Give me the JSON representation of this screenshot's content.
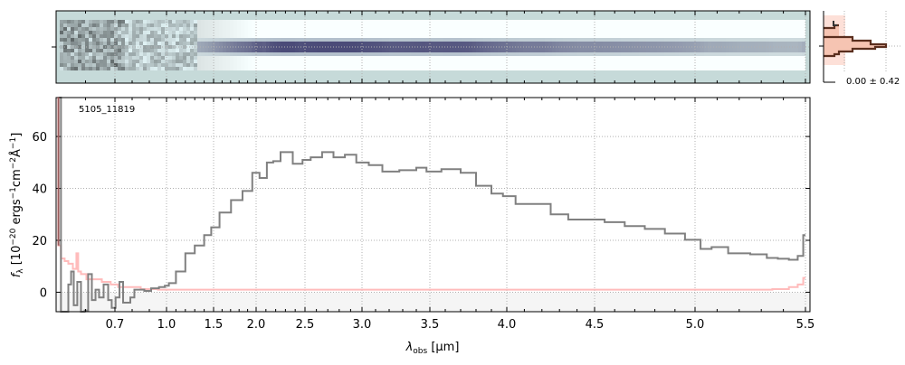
{
  "colors": {
    "spectrum": "#808080",
    "error": "#ffbbbb",
    "error_dark": "#9a5a5a",
    "neg_fill": "#f5f5f5",
    "grid": "#b0b0b0",
    "image_bg": "#c6dad9",
    "trace": "#4d4a78",
    "hist_line": "#5a2e1e",
    "hist_fill": "#f6c4b2"
  },
  "object_label": "5105_11819",
  "side_panel": {
    "label": "0.00 ± 0.42"
  },
  "chart_data": {
    "type": "line",
    "title": "",
    "xlabel_main": "λ",
    "xlabel_sub": "obs",
    "xlabel_unit": " [μm]",
    "ylabel": "f",
    "ylabel_sub": "λ",
    "ylabel_unit_a": " [10",
    "ylabel_exp1": "−20",
    "ylabel_unit_b": " ergs",
    "ylabel_exp2": "−1",
    "ylabel_unit_c": "cm",
    "ylabel_exp3": "−2",
    "ylabel_unit_d": "Å",
    "ylabel_exp4": "−1",
    "ylabel_unit_e": "]",
    "xlim": [
      0.5,
      5.52
    ],
    "ylim": [
      -7.5,
      75
    ],
    "xticks": [
      0.7,
      1.0,
      1.5,
      2.0,
      2.5,
      3.0,
      3.5,
      4.0,
      4.5,
      5.0,
      5.5
    ],
    "xtick_labels": [
      "0.7",
      "1.0",
      "1.5",
      "2.0",
      "2.5",
      "3.0",
      "3.5",
      "4.0",
      "4.5",
      "5.0",
      "5.5"
    ],
    "yticks": [
      0,
      20,
      40,
      60
    ],
    "ytick_labels": [
      "0",
      "20",
      "40",
      "60"
    ],
    "grid": true,
    "series": [
      {
        "name": "spectrum",
        "x": [
          0.51,
          0.523,
          0.535,
          0.548,
          0.554,
          0.566,
          0.578,
          0.591,
          0.603,
          0.615,
          0.628,
          0.64,
          0.652,
          0.671,
          0.683,
          0.695,
          0.716,
          0.737,
          0.758,
          0.779,
          0.8,
          0.826,
          0.853,
          0.889,
          0.932,
          0.98,
          1.0,
          1.05,
          1.15,
          1.25,
          1.35,
          1.45,
          1.5,
          1.64,
          1.77,
          1.91,
          2.0,
          2.07,
          2.15,
          2.2,
          2.3,
          2.45,
          2.5,
          2.6,
          2.7,
          2.8,
          2.9,
          3.0,
          3.1,
          3.2,
          3.35,
          3.45,
          3.5,
          3.65,
          3.75,
          3.85,
          3.95,
          4.0,
          4.1,
          4.2,
          4.3,
          4.4,
          4.5,
          4.6,
          4.7,
          4.8,
          4.9,
          5.0,
          5.05,
          5.1,
          5.2,
          5.3,
          5.35,
          5.4,
          5.45,
          5.48,
          5.5
        ],
        "y": [
          80,
          -8,
          -12,
          3,
          8,
          -5,
          4,
          -8,
          -7,
          7,
          -3,
          1,
          -2,
          3,
          -3,
          -6,
          -2,
          4,
          -4,
          -4,
          -2,
          1,
          1,
          0.5,
          1.5,
          2,
          2.5,
          3.5,
          8,
          15,
          18,
          22,
          25,
          30.7,
          35.5,
          39,
          46,
          44,
          50,
          50.5,
          54,
          49.5,
          51,
          52,
          54,
          52,
          53,
          50,
          49,
          46.5,
          47,
          48,
          46.5,
          47.4,
          46,
          41,
          38,
          37,
          34,
          34,
          30,
          28,
          28,
          27,
          25.5,
          24.4,
          22.6,
          20.2,
          16.7,
          17.4,
          15,
          14.6,
          13.2,
          12.9,
          12.5,
          14,
          22
        ]
      },
      {
        "name": "error",
        "x": [
          0.505,
          0.51,
          0.523,
          0.535,
          0.548,
          0.566,
          0.572,
          0.578,
          0.591,
          0.615,
          0.64,
          0.671,
          0.7,
          0.737,
          0.8,
          0.9,
          1.0,
          1.5,
          2.0,
          3.0,
          4.0,
          5.0,
          5.3,
          5.4,
          5.45,
          5.48,
          5.5
        ],
        "y": [
          100,
          18,
          13,
          12,
          11,
          9,
          15,
          8,
          7,
          5,
          5,
          4,
          3,
          2,
          2,
          1.2,
          1,
          1,
          1,
          1,
          1,
          1,
          1,
          1.2,
          2,
          3,
          5.5
        ]
      }
    ]
  }
}
